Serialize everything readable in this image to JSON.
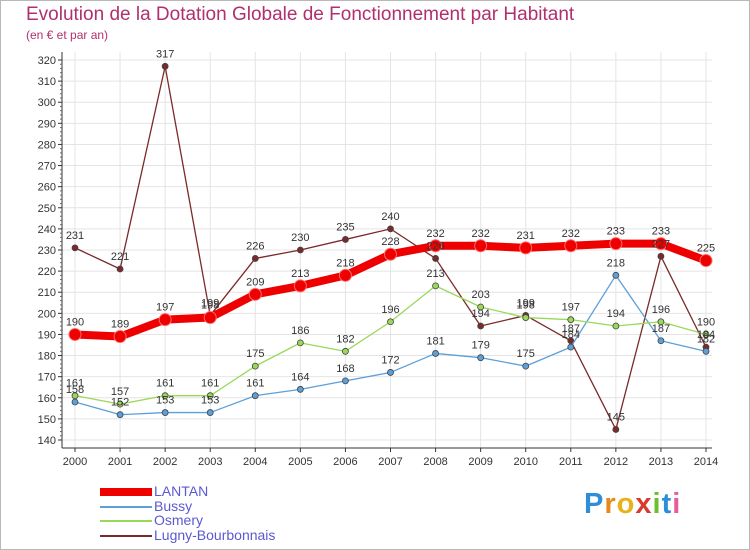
{
  "header": {
    "title": "Evolution de la Dotation Globale de Fonctionnement par Habitant",
    "subtitle": "(en € et par an)"
  },
  "logo": {
    "text": "Proxiti",
    "letters": [
      "P",
      "r",
      "o",
      "x",
      "i",
      "t",
      "i"
    ]
  },
  "chart_data": {
    "type": "line",
    "title": "Evolution de la Dotation Globale de Fonctionnement par Habitant",
    "subtitle": "(en € et par an)",
    "xlabel": "",
    "ylabel": "",
    "x": [
      "2000",
      "2001",
      "2002",
      "2003",
      "2004",
      "2005",
      "2006",
      "2007",
      "2008",
      "2009",
      "2010",
      "2011",
      "2012",
      "2013",
      "2014"
    ],
    "ylim": [
      140,
      320
    ],
    "yticks": [
      140,
      150,
      160,
      170,
      180,
      190,
      200,
      210,
      220,
      230,
      240,
      250,
      260,
      270,
      280,
      290,
      300,
      310,
      320
    ],
    "grid": true,
    "legend_position": "bottom-left",
    "series": [
      {
        "name": "LANTAN",
        "color": "#ee0000",
        "values": [
          190,
          189,
          197,
          198,
          209,
          213,
          218,
          228,
          232,
          232,
          231,
          232,
          233,
          233,
          225
        ],
        "labels": [
          "190",
          "189",
          "197",
          "198",
          "209",
          "213",
          "218",
          "228",
          "232",
          "232",
          "231",
          "232",
          "233",
          "233",
          "225"
        ]
      },
      {
        "name": "Bussy",
        "color": "#5d9fd8",
        "values": [
          158,
          152,
          153,
          153,
          161,
          164,
          168,
          172,
          181,
          179,
          175,
          184,
          218,
          187,
          182
        ],
        "labels": [
          "158",
          "152",
          "153",
          "153",
          "161",
          "164",
          "168",
          "172",
          "181",
          "179",
          "175",
          "184",
          "218",
          "187",
          "182"
        ]
      },
      {
        "name": "Osmery",
        "color": "#9ad85a",
        "values": [
          161,
          157,
          161,
          161,
          175,
          186,
          182,
          196,
          213,
          203,
          198,
          197,
          194,
          196,
          190
        ],
        "labels": [
          "161",
          "157",
          "161",
          "161",
          "175",
          "186",
          "182",
          "196",
          "213",
          "203",
          "198",
          "197",
          "194",
          "196",
          "190"
        ]
      },
      {
        "name": "Lugny-Bourbonnais",
        "color": "#7a2a2a",
        "values": [
          231,
          221,
          317,
          199,
          226,
          230,
          235,
          240,
          226,
          194,
          199,
          187,
          145,
          227,
          184
        ],
        "labels": [
          "231",
          "221",
          "317",
          "199",
          "226",
          "230",
          "235",
          "240",
          "226",
          "194",
          "199",
          "187",
          "145",
          "227",
          "184"
        ]
      }
    ]
  }
}
